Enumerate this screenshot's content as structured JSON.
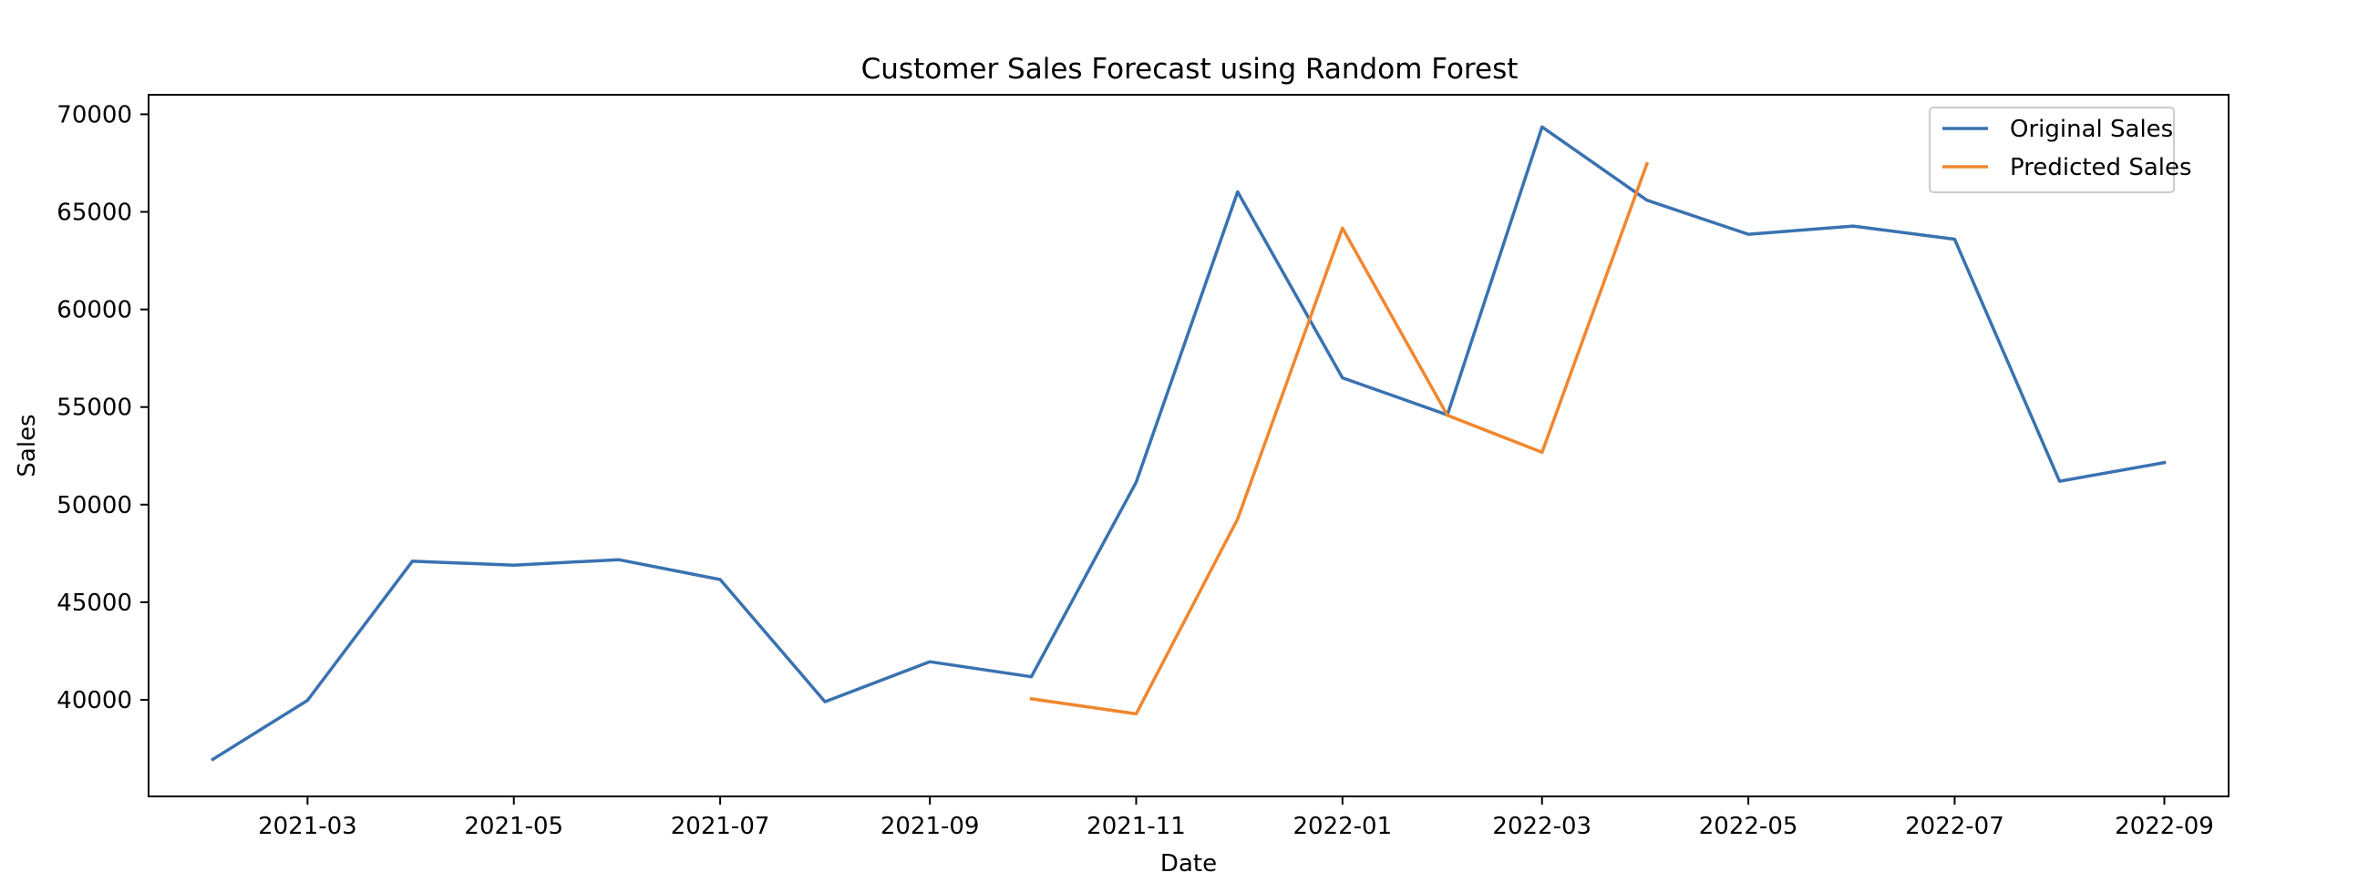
{
  "chart_data": {
    "type": "line",
    "title": "Customer Sales Forecast using Random Forest",
    "xlabel": "Date",
    "ylabel": "Sales",
    "xlim": [
      "2021-01-13",
      "2022-09-20"
    ],
    "ylim": [
      35050,
      71000
    ],
    "x_ticks": [
      "2021-03",
      "2021-05",
      "2021-07",
      "2021-09",
      "2021-11",
      "2022-01",
      "2022-03",
      "2022-05",
      "2022-07",
      "2022-09"
    ],
    "y_ticks": [
      40000,
      45000,
      50000,
      55000,
      60000,
      65000,
      70000
    ],
    "grid": false,
    "legend_position": "top-right",
    "series": [
      {
        "name": "Original Sales",
        "color": "#3a72b0",
        "x": [
          "2021-02-01",
          "2021-03-01",
          "2021-04-01",
          "2021-05-01",
          "2021-06-01",
          "2021-07-01",
          "2021-08-01",
          "2021-09-01",
          "2021-10-01",
          "2021-11-01",
          "2021-12-01",
          "2022-01-01",
          "2022-02-01",
          "2022-03-01",
          "2022-04-01",
          "2022-05-01",
          "2022-06-01",
          "2022-07-01",
          "2022-08-01",
          "2022-09-01"
        ],
        "y": [
          36950,
          39970,
          47100,
          46900,
          47180,
          46160,
          39900,
          41950,
          41180,
          51150,
          66030,
          56500,
          54600,
          69350,
          65600,
          63850,
          64270,
          63600,
          51200,
          52150
        ]
      },
      {
        "name": "Predicted Sales",
        "color": "#f0872f",
        "x": [
          "2021-10-01",
          "2021-11-01",
          "2021-12-01",
          "2022-01-01",
          "2022-02-01",
          "2022-03-01",
          "2022-04-01"
        ],
        "y": [
          40050,
          39280,
          49260,
          64170,
          54580,
          52680,
          67460
        ]
      }
    ]
  }
}
